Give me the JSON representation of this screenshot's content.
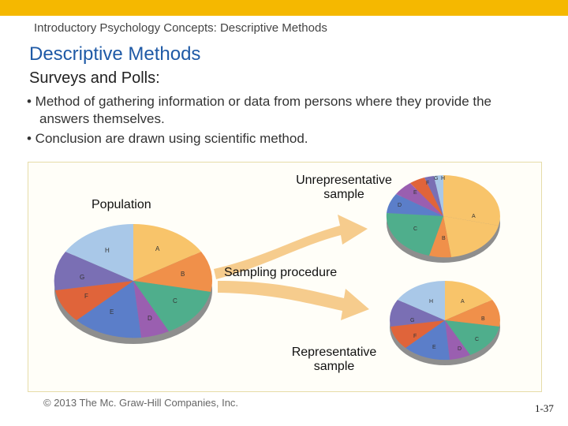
{
  "slide": {
    "header": "Introductory Psychology Concepts: Descriptive Methods",
    "title": "Descriptive Methods",
    "subtitle": "Surveys and Polls:",
    "bullets": [
      "• Method of gathering information or data from persons where they provide the answers themselves.",
      "• Conclusion are drawn using scientific method."
    ],
    "figure": {
      "population_label": "Population",
      "unrep_label": "Unrepresentative sample",
      "sampling_label": "Sampling procedure",
      "rep_label": "Representative sample",
      "slice_letters": [
        "A",
        "B",
        "C",
        "D",
        "E",
        "F",
        "G",
        "H"
      ]
    },
    "copyright": "© 2013 The Mc. Graw-Hill Companies, Inc.",
    "page": "1-37"
  },
  "colors": {
    "accent_bar": "#f5b800",
    "title": "#1f5aa6",
    "slice_A": "#f8c46a",
    "slice_B": "#f0904a",
    "slice_C": "#4fae8c",
    "slice_D": "#9a5fb0",
    "slice_E": "#5b7ec9",
    "slice_F": "#e0643a",
    "slice_G": "#7a6fb4",
    "slice_H": "#a9c8e8"
  }
}
